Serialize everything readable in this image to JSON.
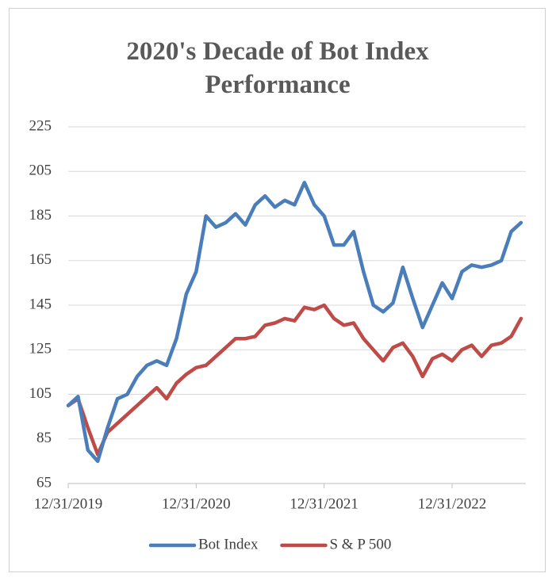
{
  "chart_data": {
    "type": "line",
    "title": "2020's Decade of Bot Index Performance",
    "categories": [
      "12/31/2019",
      null,
      null,
      null,
      null,
      null,
      null,
      null,
      null,
      null,
      null,
      null,
      null,
      "12/31/2020",
      null,
      null,
      null,
      null,
      null,
      null,
      null,
      null,
      null,
      null,
      null,
      null,
      "12/31/2021",
      null,
      null,
      null,
      null,
      null,
      null,
      null,
      null,
      null,
      null,
      null,
      null,
      "12/31/2022",
      null,
      null,
      null,
      null,
      null,
      null,
      null
    ],
    "series": [
      {
        "name": "Bot Index",
        "color": "#4a7ebb",
        "values": [
          100,
          104,
          80,
          75,
          90,
          103,
          105,
          113,
          118,
          120,
          118,
          130,
          150,
          160,
          185,
          180,
          182,
          186,
          181,
          190,
          194,
          189,
          192,
          190,
          200,
          190,
          185,
          172,
          172,
          178,
          160,
          145,
          142,
          146,
          162,
          148,
          135,
          145,
          155,
          148,
          160,
          163,
          162,
          163,
          165,
          178,
          182
        ]
      },
      {
        "name": "S & P 500",
        "color": "#be4b48",
        "values": [
          100,
          103,
          90,
          78,
          88,
          92,
          96,
          100,
          104,
          108,
          103,
          110,
          114,
          117,
          118,
          122,
          126,
          130,
          130,
          131,
          136,
          137,
          139,
          138,
          144,
          143,
          145,
          139,
          136,
          137,
          130,
          125,
          120,
          126,
          128,
          122,
          113,
          121,
          123,
          120,
          125,
          127,
          122,
          127,
          128,
          131,
          139
        ]
      }
    ],
    "ylim": [
      65,
      225
    ],
    "yticks": [
      65,
      85,
      105,
      125,
      145,
      165,
      185,
      205,
      225
    ],
    "grid": true,
    "legend": "bottom"
  }
}
